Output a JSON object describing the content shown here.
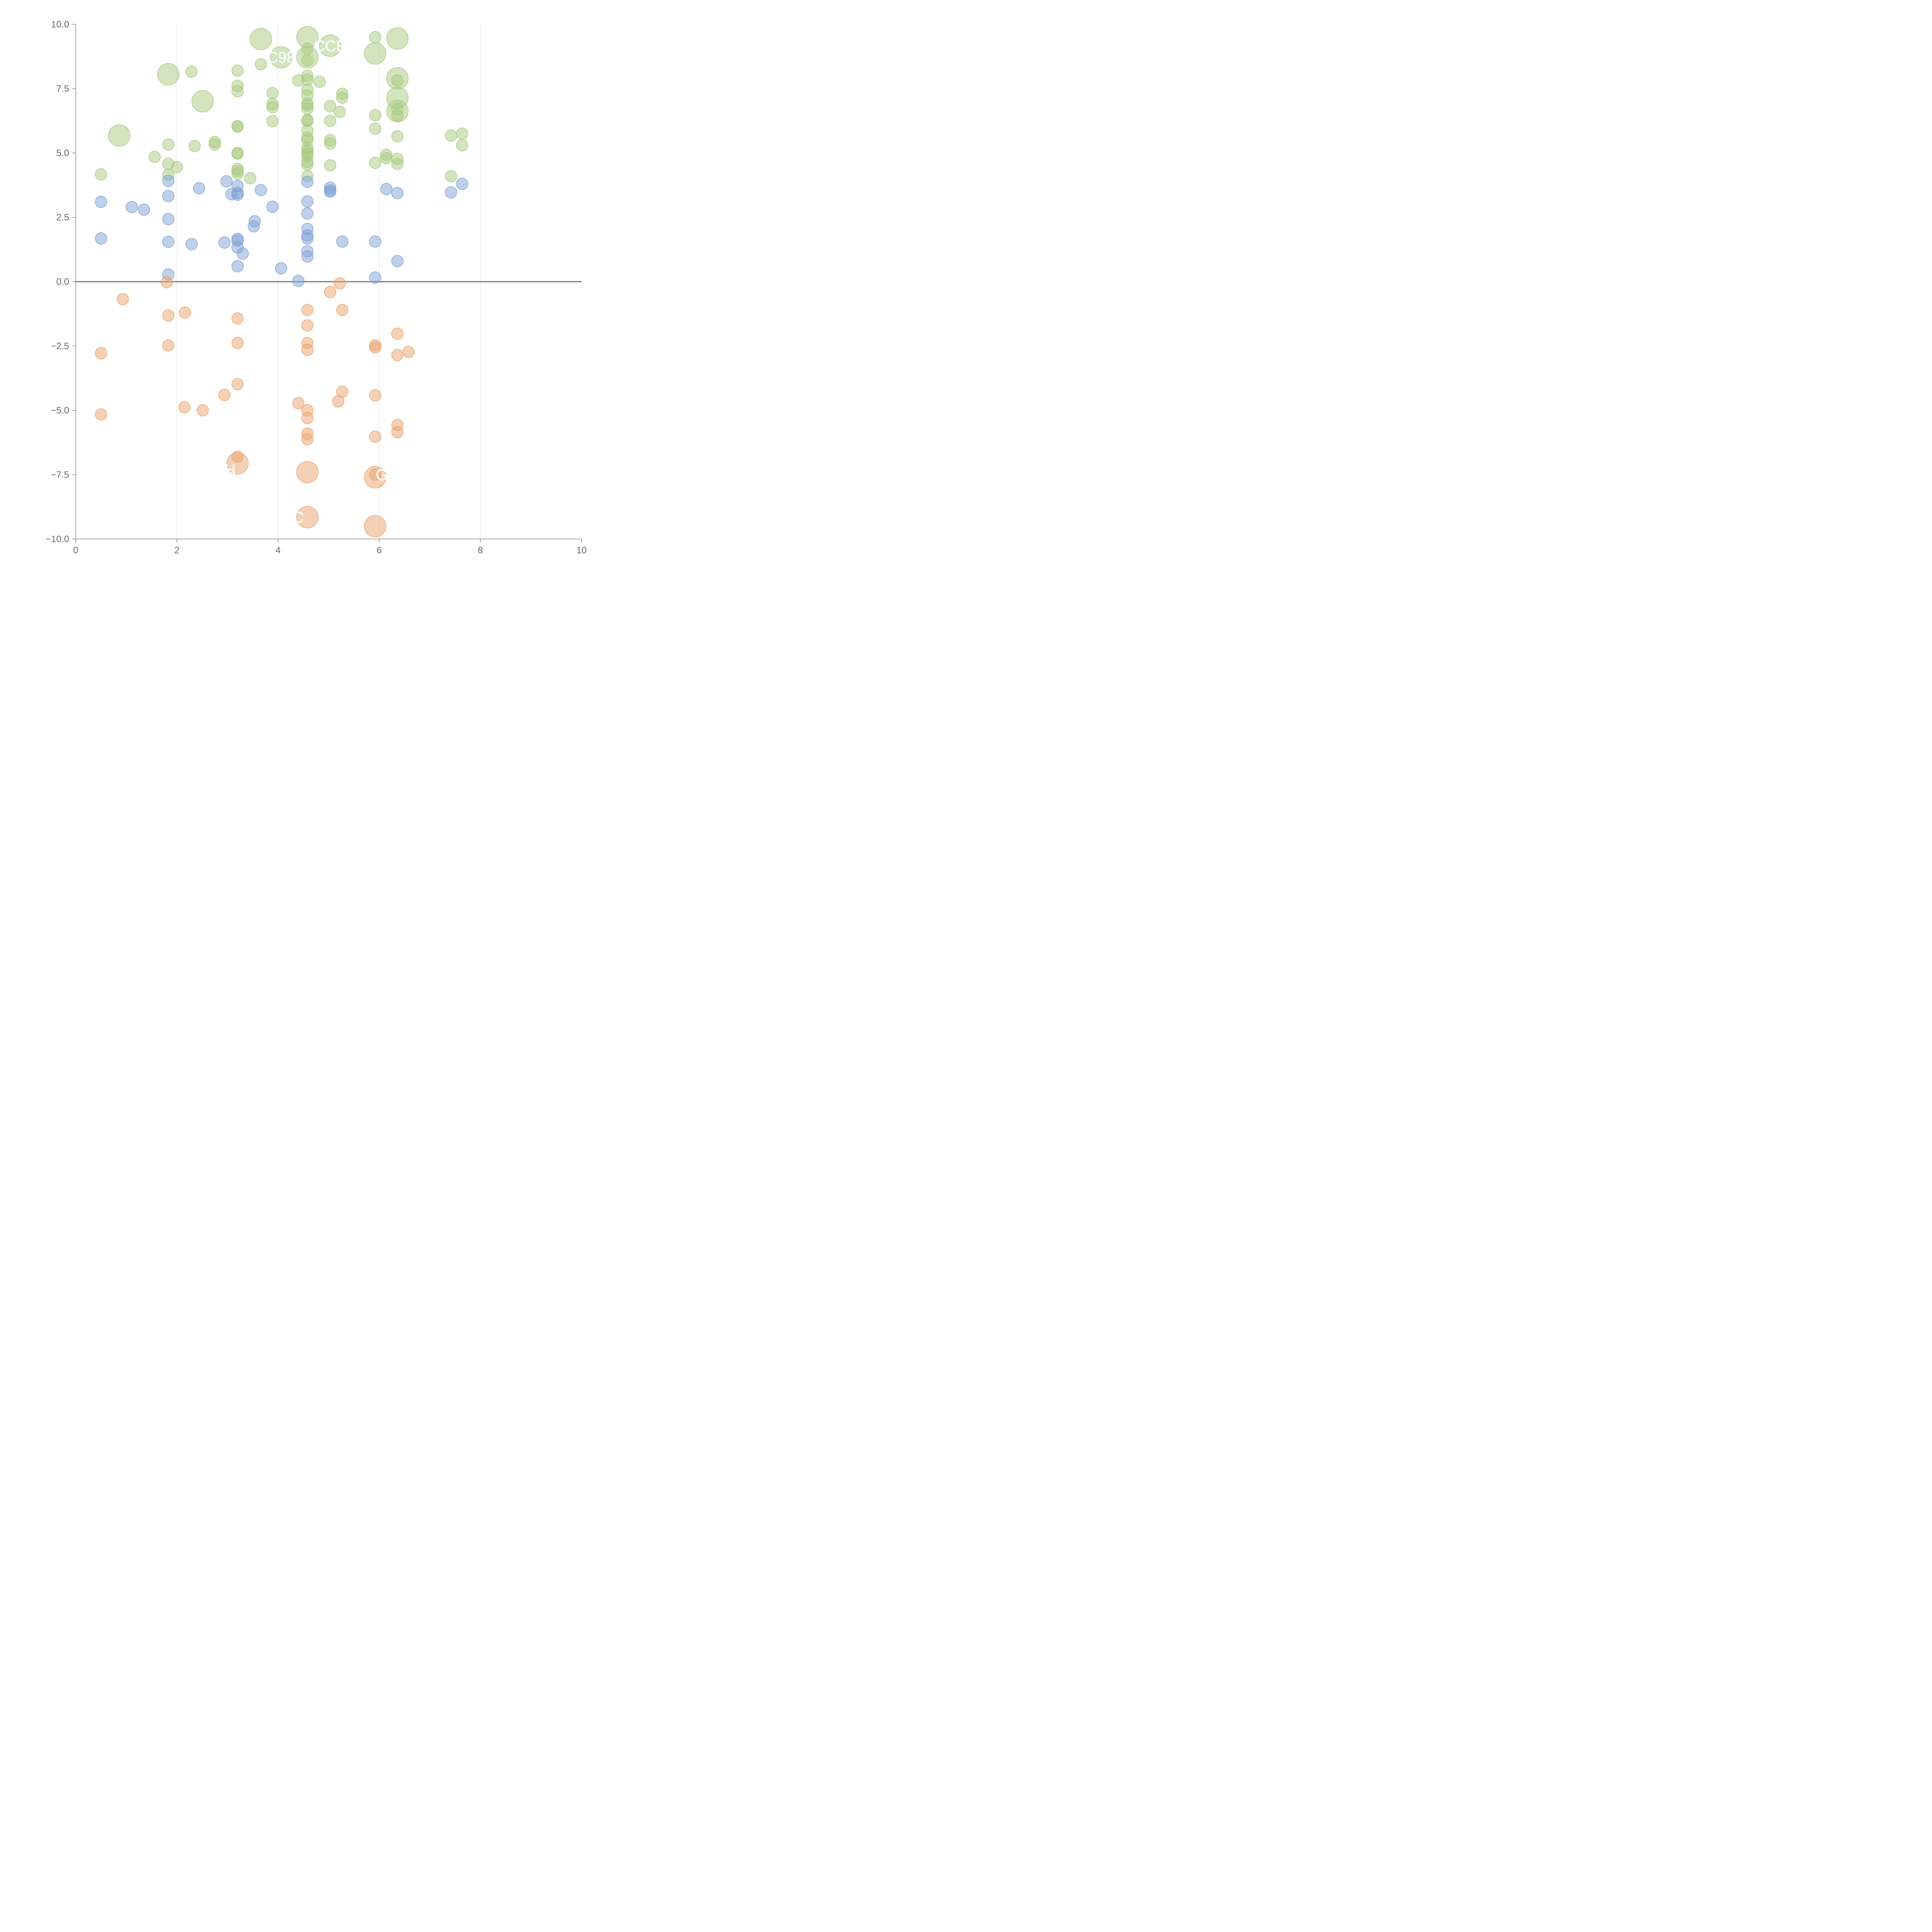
{
  "chart_data": {
    "type": "scatter",
    "title": "",
    "xlabel": "",
    "ylabel": "",
    "xlim": [
      0,
      10
    ],
    "ylim": [
      -10,
      10
    ],
    "x_ticks": [
      {
        "value": 0,
        "label": "0"
      },
      {
        "value": 2,
        "label": "2"
      },
      {
        "value": 4,
        "label": "4"
      },
      {
        "value": 6,
        "label": "6"
      },
      {
        "value": 8,
        "label": "8"
      },
      {
        "value": 10,
        "label": "10"
      }
    ],
    "y_ticks": [
      {
        "value": 10,
        "label": "10.0"
      },
      {
        "value": 7.5,
        "label": "7.5"
      },
      {
        "value": 5,
        "label": "5.0"
      },
      {
        "value": 2.5,
        "label": "2.5"
      },
      {
        "value": 0,
        "label": "0.0"
      },
      {
        "value": -2.5,
        "label": "−2.5"
      },
      {
        "value": -5,
        "label": "−5.0"
      },
      {
        "value": -7.5,
        "label": "−7.5"
      },
      {
        "value": -10,
        "label": "−10.0"
      }
    ],
    "vertical_gridlines": [
      2,
      4,
      6,
      8
    ],
    "zero_line": 0,
    "colors": {
      "green": "#a8c97f",
      "blue": "#7fa1d6",
      "orange": "#eaa36e",
      "axis": "#888888",
      "tick_text": "#666666",
      "zero_line": "#777777",
      "grid": "#dddddd",
      "label_text": "#ffffff"
    },
    "series": [
      {
        "name": "green",
        "size": "small",
        "points": [
          {
            "x": 0.5,
            "y": 4.17
          },
          {
            "x": 1.56,
            "y": 4.85
          },
          {
            "x": 1.83,
            "y": 5.33
          },
          {
            "x": 1.83,
            "y": 4.58
          },
          {
            "x": 1.83,
            "y": 4.16
          },
          {
            "x": 2.0,
            "y": 4.45
          },
          {
            "x": 2.29,
            "y": 8.16
          },
          {
            "x": 2.35,
            "y": 5.27
          },
          {
            "x": 2.75,
            "y": 5.43
          },
          {
            "x": 2.75,
            "y": 5.33
          },
          {
            "x": 3.2,
            "y": 8.2
          },
          {
            "x": 3.2,
            "y": 7.61
          },
          {
            "x": 3.2,
            "y": 7.4
          },
          {
            "x": 3.2,
            "y": 6.04
          },
          {
            "x": 3.2,
            "y": 6.03
          },
          {
            "x": 3.2,
            "y": 5.0
          },
          {
            "x": 3.2,
            "y": 4.98
          },
          {
            "x": 3.2,
            "y": 4.38
          },
          {
            "x": 3.2,
            "y": 4.3
          },
          {
            "x": 3.2,
            "y": 4.2
          },
          {
            "x": 3.45,
            "y": 4.02
          },
          {
            "x": 3.66,
            "y": 8.45
          },
          {
            "x": 3.89,
            "y": 7.33
          },
          {
            "x": 3.89,
            "y": 6.9
          },
          {
            "x": 3.89,
            "y": 6.78
          },
          {
            "x": 3.89,
            "y": 6.24
          },
          {
            "x": 4.4,
            "y": 7.82
          },
          {
            "x": 4.58,
            "y": 9.05
          },
          {
            "x": 4.58,
            "y": 8.6
          },
          {
            "x": 4.58,
            "y": 8.0
          },
          {
            "x": 4.58,
            "y": 7.85
          },
          {
            "x": 4.58,
            "y": 7.47
          },
          {
            "x": 4.58,
            "y": 7.24
          },
          {
            "x": 4.58,
            "y": 6.93
          },
          {
            "x": 4.58,
            "y": 6.85
          },
          {
            "x": 4.58,
            "y": 6.72
          },
          {
            "x": 4.58,
            "y": 6.28
          },
          {
            "x": 4.58,
            "y": 6.25
          },
          {
            "x": 4.58,
            "y": 5.87
          },
          {
            "x": 4.58,
            "y": 5.6
          },
          {
            "x": 4.58,
            "y": 5.5
          },
          {
            "x": 4.58,
            "y": 5.2
          },
          {
            "x": 4.58,
            "y": 5.07
          },
          {
            "x": 4.58,
            "y": 4.97
          },
          {
            "x": 4.58,
            "y": 4.88
          },
          {
            "x": 4.58,
            "y": 4.65
          },
          {
            "x": 4.58,
            "y": 4.55
          },
          {
            "x": 4.58,
            "y": 4.1
          },
          {
            "x": 4.82,
            "y": 7.77
          },
          {
            "x": 5.03,
            "y": 6.82
          },
          {
            "x": 5.03,
            "y": 6.25
          },
          {
            "x": 5.03,
            "y": 5.5
          },
          {
            "x": 5.03,
            "y": 5.37
          },
          {
            "x": 5.03,
            "y": 4.52
          },
          {
            "x": 5.22,
            "y": 6.6
          },
          {
            "x": 5.27,
            "y": 7.3
          },
          {
            "x": 5.27,
            "y": 7.15
          },
          {
            "x": 5.92,
            "y": 9.5
          },
          {
            "x": 5.92,
            "y": 6.47
          },
          {
            "x": 5.92,
            "y": 5.95
          },
          {
            "x": 5.92,
            "y": 4.62
          },
          {
            "x": 6.14,
            "y": 4.93
          },
          {
            "x": 6.14,
            "y": 4.8
          },
          {
            "x": 6.36,
            "y": 7.82
          },
          {
            "x": 6.36,
            "y": 6.7
          },
          {
            "x": 6.36,
            "y": 6.45
          },
          {
            "x": 6.36,
            "y": 5.65
          },
          {
            "x": 6.36,
            "y": 4.77
          },
          {
            "x": 6.36,
            "y": 4.58
          },
          {
            "x": 7.42,
            "y": 5.68
          },
          {
            "x": 7.42,
            "y": 4.1
          },
          {
            "x": 7.64,
            "y": 5.75
          },
          {
            "x": 7.64,
            "y": 5.3
          }
        ]
      },
      {
        "name": "green-large",
        "size": "large",
        "points": [
          {
            "x": 0.86,
            "y": 5.68
          },
          {
            "x": 1.83,
            "y": 8.06
          },
          {
            "x": 2.51,
            "y": 7.01
          },
          {
            "x": 3.66,
            "y": 9.43
          },
          {
            "x": 4.06,
            "y": 8.72
          },
          {
            "x": 4.58,
            "y": 9.5
          },
          {
            "x": 4.58,
            "y": 8.72
          },
          {
            "x": 5.03,
            "y": 9.17
          },
          {
            "x": 5.92,
            "y": 8.87
          },
          {
            "x": 6.36,
            "y": 9.45
          },
          {
            "x": 6.36,
            "y": 7.9
          },
          {
            "x": 6.36,
            "y": 7.14
          },
          {
            "x": 6.36,
            "y": 6.63
          }
        ]
      },
      {
        "name": "blue",
        "size": "small",
        "points": [
          {
            "x": 0.5,
            "y": 3.1
          },
          {
            "x": 0.5,
            "y": 1.68
          },
          {
            "x": 1.11,
            "y": 2.9
          },
          {
            "x": 1.35,
            "y": 2.8
          },
          {
            "x": 1.83,
            "y": 3.92
          },
          {
            "x": 1.83,
            "y": 3.33
          },
          {
            "x": 1.83,
            "y": 2.43
          },
          {
            "x": 1.83,
            "y": 1.55
          },
          {
            "x": 1.83,
            "y": 0.28
          },
          {
            "x": 2.29,
            "y": 1.46
          },
          {
            "x": 2.44,
            "y": 3.63
          },
          {
            "x": 2.94,
            "y": 1.52
          },
          {
            "x": 2.98,
            "y": 3.9
          },
          {
            "x": 3.08,
            "y": 3.4
          },
          {
            "x": 3.2,
            "y": 3.72
          },
          {
            "x": 3.2,
            "y": 3.45
          },
          {
            "x": 3.2,
            "y": 3.38
          },
          {
            "x": 3.2,
            "y": 1.66
          },
          {
            "x": 3.2,
            "y": 1.6
          },
          {
            "x": 3.2,
            "y": 1.33
          },
          {
            "x": 3.2,
            "y": 0.6
          },
          {
            "x": 3.3,
            "y": 1.09
          },
          {
            "x": 3.52,
            "y": 2.15
          },
          {
            "x": 3.54,
            "y": 2.35
          },
          {
            "x": 3.66,
            "y": 3.56
          },
          {
            "x": 3.89,
            "y": 2.91
          },
          {
            "x": 4.06,
            "y": 0.52
          },
          {
            "x": 4.4,
            "y": 0.03
          },
          {
            "x": 4.58,
            "y": 3.88
          },
          {
            "x": 4.58,
            "y": 3.12
          },
          {
            "x": 4.58,
            "y": 2.65
          },
          {
            "x": 4.58,
            "y": 2.05
          },
          {
            "x": 4.58,
            "y": 1.8
          },
          {
            "x": 4.58,
            "y": 1.68
          },
          {
            "x": 4.58,
            "y": 1.18
          },
          {
            "x": 4.58,
            "y": 0.98
          },
          {
            "x": 5.03,
            "y": 3.65
          },
          {
            "x": 5.03,
            "y": 3.55
          },
          {
            "x": 5.03,
            "y": 3.5
          },
          {
            "x": 5.27,
            "y": 1.56
          },
          {
            "x": 5.92,
            "y": 1.56
          },
          {
            "x": 5.92,
            "y": 0.16
          },
          {
            "x": 6.14,
            "y": 3.6
          },
          {
            "x": 6.36,
            "y": 3.44
          },
          {
            "x": 6.36,
            "y": 0.8
          },
          {
            "x": 7.42,
            "y": 3.47
          },
          {
            "x": 7.64,
            "y": 3.8
          }
        ]
      },
      {
        "name": "orange",
        "size": "small",
        "points": [
          {
            "x": 0.5,
            "y": -2.78
          },
          {
            "x": 0.5,
            "y": -5.16
          },
          {
            "x": 0.93,
            "y": -0.68
          },
          {
            "x": 1.8,
            "y": -0.02
          },
          {
            "x": 1.83,
            "y": -1.32
          },
          {
            "x": 1.83,
            "y": -2.48
          },
          {
            "x": 2.16,
            "y": -1.2
          },
          {
            "x": 2.15,
            "y": -4.88
          },
          {
            "x": 2.51,
            "y": -5.0
          },
          {
            "x": 2.94,
            "y": -4.4
          },
          {
            "x": 3.2,
            "y": -1.43
          },
          {
            "x": 3.2,
            "y": -2.38
          },
          {
            "x": 3.2,
            "y": -3.98
          },
          {
            "x": 3.2,
            "y": -6.8
          },
          {
            "x": 4.4,
            "y": -4.72
          },
          {
            "x": 4.58,
            "y": -1.1
          },
          {
            "x": 4.58,
            "y": -1.7
          },
          {
            "x": 4.58,
            "y": -2.38
          },
          {
            "x": 4.58,
            "y": -2.65
          },
          {
            "x": 4.58,
            "y": -5.0
          },
          {
            "x": 4.58,
            "y": -5.3
          },
          {
            "x": 4.58,
            "y": -5.9
          },
          {
            "x": 4.58,
            "y": -6.12
          },
          {
            "x": 5.03,
            "y": -0.4
          },
          {
            "x": 5.22,
            "y": -0.07
          },
          {
            "x": 5.27,
            "y": -1.1
          },
          {
            "x": 5.19,
            "y": -4.65
          },
          {
            "x": 5.27,
            "y": -4.28
          },
          {
            "x": 5.92,
            "y": -2.47
          },
          {
            "x": 5.92,
            "y": -2.55
          },
          {
            "x": 5.92,
            "y": -4.42
          },
          {
            "x": 5.92,
            "y": -6.02
          },
          {
            "x": 5.92,
            "y": -7.5
          },
          {
            "x": 6.36,
            "y": -2.02
          },
          {
            "x": 6.36,
            "y": -2.85
          },
          {
            "x": 6.36,
            "y": -5.57
          },
          {
            "x": 6.36,
            "y": -5.85
          },
          {
            "x": 6.58,
            "y": -2.73
          }
        ]
      },
      {
        "name": "orange-large",
        "size": "large",
        "points": [
          {
            "x": 3.2,
            "y": -7.06
          },
          {
            "x": 4.58,
            "y": -7.4
          },
          {
            "x": 4.58,
            "y": -9.15
          },
          {
            "x": 5.92,
            "y": -7.6
          },
          {
            "x": 5.92,
            "y": -9.5
          }
        ]
      }
    ],
    "annotations": [
      {
        "text": "C98",
        "x": 4.06,
        "y": 8.72
      },
      {
        "text": "CCE",
        "x": 5.03,
        "y": 9.17
      },
      {
        "text": "G",
        "x": 6.05,
        "y": -7.5
      },
      {
        "text": "C",
        "x": 4.4,
        "y": -9.15
      },
      {
        "text": "H",
        "x": 3.05,
        "y": -7.3
      }
    ]
  }
}
